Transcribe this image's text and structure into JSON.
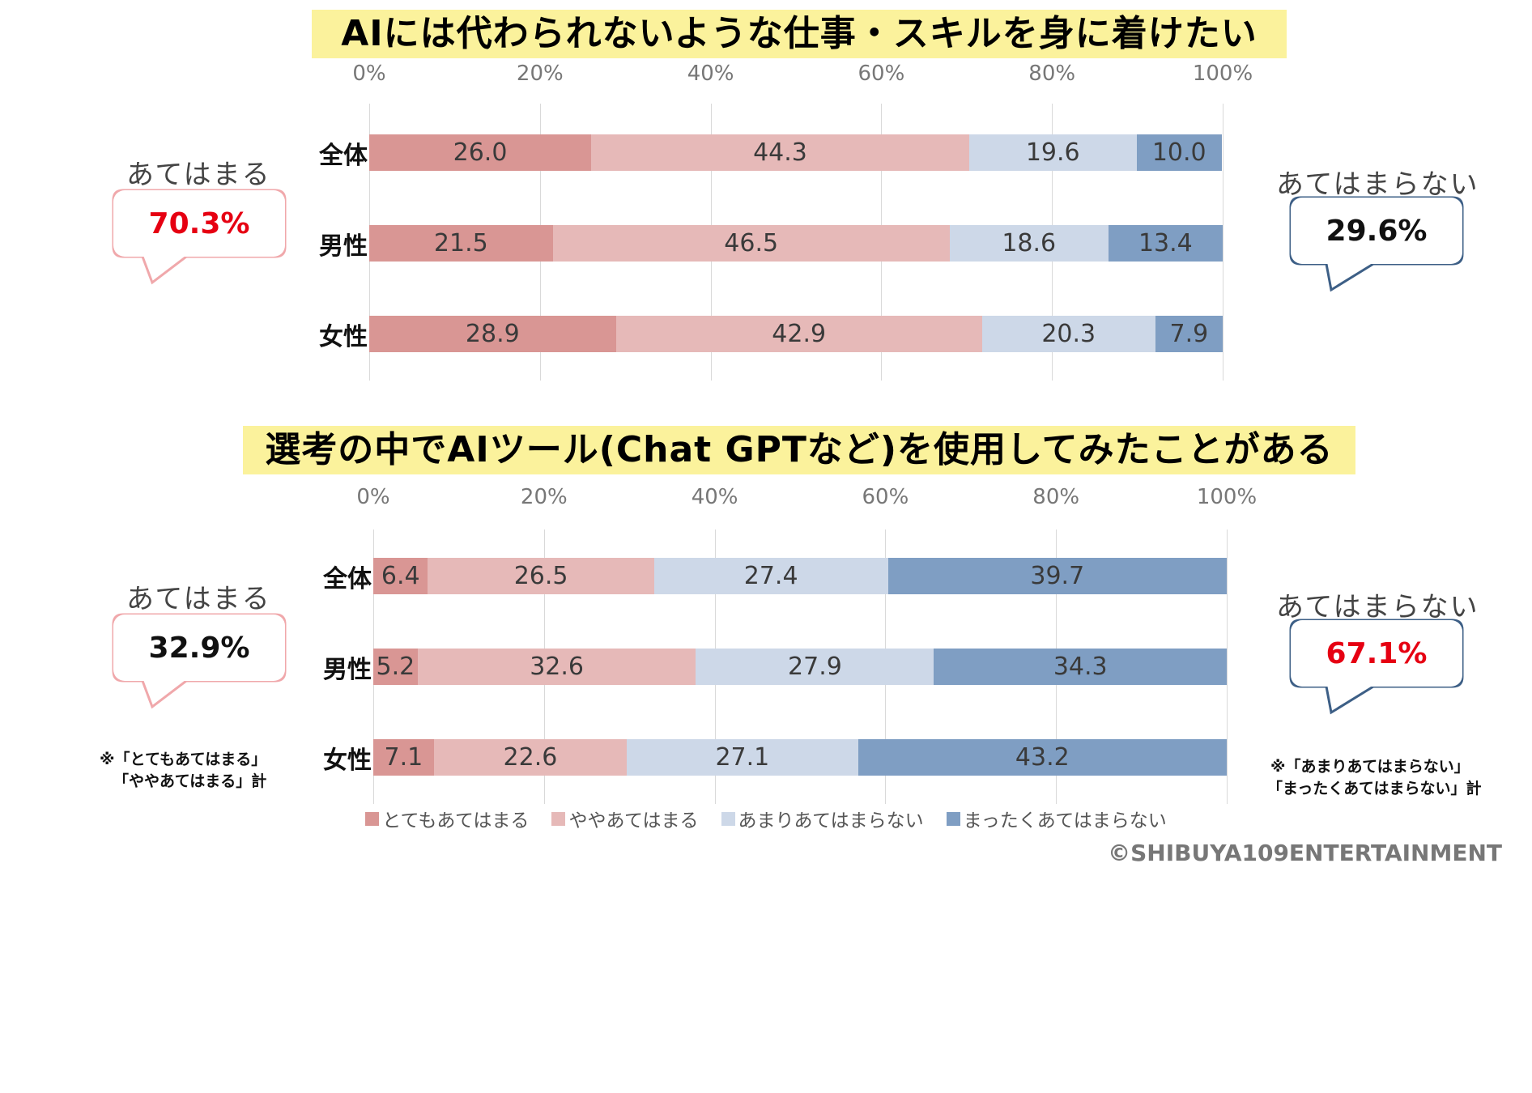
{
  "colors": {
    "very_applies": "#d99694",
    "somewhat_applies": "#e6b9b8",
    "not_really": "#cdd8e8",
    "not_at_all": "#7f9ec3",
    "title_bg": "#fbf29c",
    "pink_border": "#f0a8ab",
    "blue_border": "#3d5f86",
    "red_value": "#e60012"
  },
  "axis_ticks": [
    "0%",
    "20%",
    "40%",
    "60%",
    "80%",
    "100%"
  ],
  "charts": [
    {
      "title": "AIには代わられないような仕事・スキルを身に着けたい",
      "left_bubble": {
        "label": "あてはまる",
        "value": "70.3%"
      },
      "right_bubble": {
        "label": "あてはまらない",
        "value": "29.6%"
      }
    },
    {
      "title": "選考の中でAIツール(Chat GPTなど)を使用してみたことがある",
      "left_bubble": {
        "label": "あてはまる",
        "value": "32.9%"
      },
      "right_bubble": {
        "label": "あてはまらない",
        "value": "67.1%"
      }
    }
  ],
  "notes": {
    "left": [
      "※「とてもあてはまる」",
      "「ややあてはまる」計"
    ],
    "right": [
      "※「あまりあてはまらない」",
      "「まったくあてはまらない」計"
    ]
  },
  "legend": [
    "とてもあてはまる",
    "ややあてはまる",
    "あまりあてはまらない",
    "まったくあてはまらない"
  ],
  "copyright": "©SHIBUYA109ENTERTAINMENT",
  "chart_data": [
    {
      "type": "bar",
      "orientation": "horizontal-stacked-100",
      "title": "AIには代わられないような仕事・スキルを身に着けたい",
      "categories": [
        "全体",
        "男性",
        "女性"
      ],
      "series": [
        {
          "name": "とてもあてはまる",
          "values": [
            26.0,
            21.5,
            28.9
          ]
        },
        {
          "name": "ややあてはまる",
          "values": [
            44.3,
            46.5,
            42.9
          ]
        },
        {
          "name": "あまりあてはまらない",
          "values": [
            19.6,
            18.6,
            20.3
          ]
        },
        {
          "name": "まったくあてはまらない",
          "values": [
            10.0,
            13.4,
            7.9
          ]
        }
      ],
      "xlim": [
        0,
        100
      ],
      "grid": true
    },
    {
      "type": "bar",
      "orientation": "horizontal-stacked-100",
      "title": "選考の中でAIツール(Chat GPTなど)を使用してみたことがある",
      "categories": [
        "全体",
        "男性",
        "女性"
      ],
      "series": [
        {
          "name": "とてもあてはまる",
          "values": [
            6.4,
            5.2,
            7.1
          ]
        },
        {
          "name": "ややあてはまる",
          "values": [
            26.5,
            32.6,
            22.6
          ]
        },
        {
          "name": "あまりあてはまらない",
          "values": [
            27.4,
            27.9,
            27.1
          ]
        },
        {
          "name": "まったくあてはまらない",
          "values": [
            39.7,
            34.3,
            43.2
          ]
        }
      ],
      "xlim": [
        0,
        100
      ],
      "grid": true,
      "legend": "bottom"
    }
  ]
}
